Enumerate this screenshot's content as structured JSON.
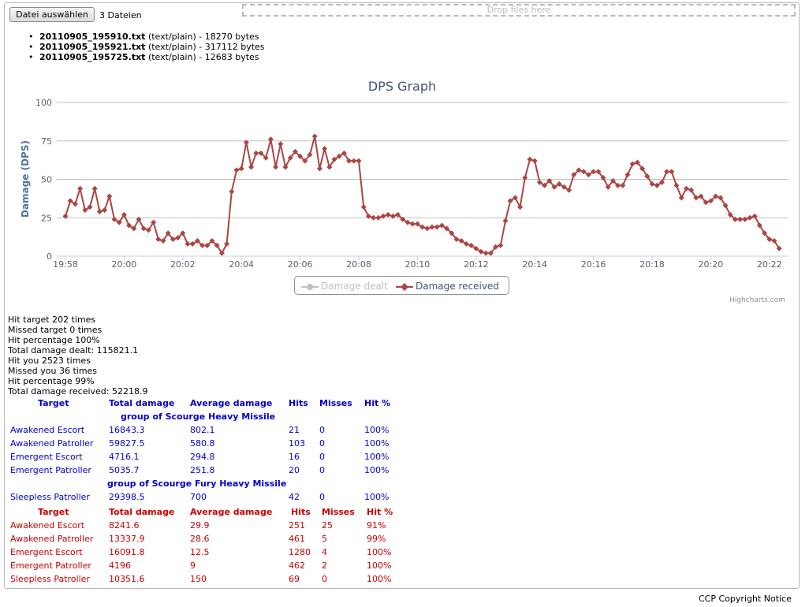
{
  "upload": {
    "button_label": "Datei auswählen",
    "file_count": "3 Dateien",
    "dropzone_text": "Drop files here",
    "files": [
      {
        "name": "20110905_195910.txt",
        "info": " (text/plain) - 18270 bytes"
      },
      {
        "name": "20110905_195921.txt",
        "info": " (text/plain) - 317112 bytes"
      },
      {
        "name": "20110905_195725.txt",
        "info": " (text/plain) - 12683 bytes"
      }
    ]
  },
  "chart_data": {
    "type": "line",
    "title": "DPS Graph",
    "ylabel": "Damage (DPS)",
    "xlabel": "",
    "ylim": [
      0,
      100
    ],
    "yticks": [
      "0",
      "25",
      "50",
      "75",
      "100"
    ],
    "xticks": [
      "19:58",
      "20:00",
      "20:02",
      "20:04",
      "20:06",
      "20:08",
      "20:10",
      "20:12",
      "20:14",
      "20:16",
      "20:18",
      "20:20",
      "20:22"
    ],
    "x_start": "19:58",
    "x_step_seconds": 10,
    "grid": true,
    "legend_position": "bottom-center",
    "series": [
      {
        "name": "Damage dealt",
        "color": "#c0c0c0",
        "visible": false,
        "values": []
      },
      {
        "name": "Damage received",
        "color": "#aa4643",
        "visible": true,
        "values": [
          26,
          36,
          34,
          44,
          30,
          32,
          44,
          29,
          30,
          39,
          24,
          22,
          27,
          20,
          18,
          24,
          18,
          17,
          22,
          11,
          10,
          15,
          11,
          12,
          15,
          8,
          8,
          10,
          7,
          7,
          10,
          7,
          2,
          8,
          42,
          56,
          57,
          74,
          58,
          67,
          67,
          64,
          76,
          58,
          73,
          58,
          64,
          68,
          65,
          62,
          66,
          78,
          57,
          70,
          58,
          63,
          65,
          67,
          62,
          62,
          62,
          32,
          26,
          25,
          25,
          26,
          27,
          26,
          27,
          24,
          22,
          21,
          21,
          19,
          18,
          19,
          19,
          20,
          18,
          15,
          11,
          10,
          8,
          7,
          5,
          3,
          2,
          2,
          6,
          7,
          23,
          36,
          38,
          32,
          51,
          63,
          62,
          48,
          46,
          49,
          45,
          47,
          45,
          43,
          53,
          56,
          55,
          53,
          55,
          55,
          51,
          45,
          49,
          46,
          46,
          53,
          60,
          61,
          57,
          52,
          47,
          46,
          48,
          55,
          55,
          46,
          38,
          44,
          43,
          38,
          39,
          35,
          36,
          39,
          38,
          33,
          27,
          24,
          24,
          24,
          25,
          26,
          20,
          15,
          11,
          10,
          5
        ]
      }
    ],
    "credits": "Highcharts.com"
  },
  "stats": [
    "Hit target 202 times",
    "Missed target 0 times",
    "Hit percentage 100%",
    "Total damage dealt: 115821.1",
    "Hit you 2523 times",
    "Missed you 36 times",
    "Hit percentage 99%",
    "Total damage received: 52218.9"
  ],
  "dealt_table": {
    "color": "#0000cc",
    "headers": [
      "Target",
      "Total damage",
      "Average damage",
      "Hits",
      "Misses",
      "Hit %"
    ],
    "groups": [
      {
        "title": "group of Scourge Heavy Missile",
        "rows": [
          [
            "Awakened Escort",
            "16843.3",
            "802.1",
            "21",
            "0",
            "100%"
          ],
          [
            "Awakened Patroller",
            "59827.5",
            "580.8",
            "103",
            "0",
            "100%"
          ],
          [
            "Emergent Escort",
            "4716.1",
            "294.8",
            "16",
            "0",
            "100%"
          ],
          [
            "Emergent Patroller",
            "5035.7",
            "251.8",
            "20",
            "0",
            "100%"
          ]
        ]
      },
      {
        "title": "group of Scourge Fury Heavy Missile",
        "rows": [
          [
            "Sleepless Patroller",
            "29398.5",
            "700",
            "42",
            "0",
            "100%"
          ]
        ]
      }
    ]
  },
  "received_table": {
    "color": "#cc0000",
    "headers": [
      "Target",
      "Total damage",
      "Average damage",
      "Hits",
      "Misses",
      "Hit %"
    ],
    "rows": [
      [
        "Awakened Escort",
        "8241.6",
        "29.9",
        "251",
        "25",
        "91%"
      ],
      [
        "Awakened Patroller",
        "13337.9",
        "28.6",
        "461",
        "5",
        "99%"
      ],
      [
        "Emergent Escort",
        "16091.8",
        "12.5",
        "1280",
        "4",
        "100%"
      ],
      [
        "Emergent Patroller",
        "4196",
        "9",
        "462",
        "2",
        "100%"
      ],
      [
        "Sleepless Patroller",
        "10351.6",
        "150",
        "69",
        "0",
        "100%"
      ]
    ]
  },
  "footer": {
    "copyright": "CCP Copyright Notice"
  }
}
